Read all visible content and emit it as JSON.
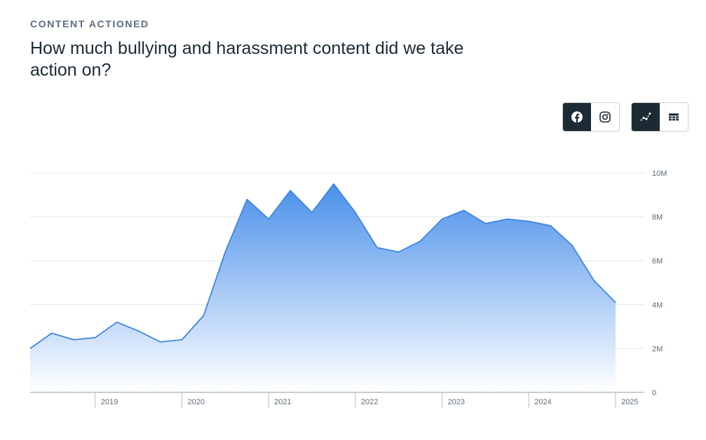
{
  "header": {
    "eyebrow": "CONTENT ACTIONED",
    "title": "How much bullying and harassment content did we take action on?"
  },
  "controls": {
    "platforms": [
      {
        "icon": "facebook-icon",
        "active": true
      },
      {
        "icon": "instagram-icon",
        "active": false
      }
    ],
    "views": [
      {
        "icon": "line-chart-icon",
        "active": true
      },
      {
        "icon": "table-icon",
        "active": false
      }
    ]
  },
  "colors": {
    "line": "#3f86e0",
    "fill_top": "#4a90ea",
    "fill_bottom": "#ffffff",
    "grid": "#e4e6eb",
    "active_button": "#1c2b33"
  },
  "chart_data": {
    "type": "area",
    "x": [
      "2018 Q2",
      "2018 Q3",
      "2018 Q4",
      "2019 Q1",
      "2019 Q2",
      "2019 Q3",
      "2019 Q4",
      "2020 Q1",
      "2020 Q2",
      "2020 Q3",
      "2020 Q4",
      "2021 Q1",
      "2021 Q2",
      "2021 Q3",
      "2021 Q4",
      "2022 Q1",
      "2022 Q2",
      "2022 Q3",
      "2022 Q4",
      "2023 Q1",
      "2023 Q2",
      "2023 Q3",
      "2023 Q4",
      "2024 Q1",
      "2024 Q2",
      "2024 Q3",
      "2024 Q4",
      "2025 Q1"
    ],
    "series": [
      {
        "values": [
          2.0,
          2.7,
          2.4,
          2.5,
          3.2,
          2.8,
          2.3,
          2.4,
          3.5,
          6.4,
          8.8,
          7.9,
          9.2,
          8.2,
          9.5,
          8.2,
          6.6,
          6.4,
          6.9,
          7.9,
          8.3,
          7.7,
          7.9,
          7.8,
          7.6,
          6.7,
          5.1,
          4.1
        ]
      }
    ],
    "x_tick_labels": [
      "2019",
      "2020",
      "2021",
      "2022",
      "2023",
      "2024",
      "2025"
    ],
    "y_tick_labels": [
      "0",
      "2M",
      "4M",
      "6M",
      "8M",
      "10M"
    ],
    "ylim": [
      0,
      10
    ],
    "y_unit": "M",
    "grid": true,
    "legend": "none"
  }
}
